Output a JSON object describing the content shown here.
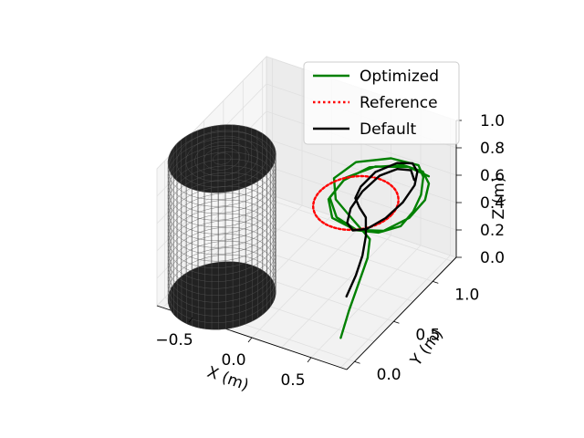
{
  "chart_data": {
    "type": "line",
    "projection": "3d",
    "xlabel": "X (m)",
    "ylabel": "Y (m)",
    "zlabel": "Z (m)",
    "xlim": [
      -0.8,
      0.8
    ],
    "ylim": [
      -0.1,
      1.3
    ],
    "zlim": [
      0.0,
      1.0
    ],
    "grid": true,
    "legend_position": "upper-right",
    "xticks": [
      {
        "value": -0.5,
        "label": "−0.5"
      },
      {
        "value": 0.0,
        "label": "0.0"
      },
      {
        "value": 0.5,
        "label": "0.5"
      }
    ],
    "yticks": [
      {
        "value": 0.0,
        "label": "0.0"
      },
      {
        "value": 0.5,
        "label": "0.5"
      },
      {
        "value": 1.0,
        "label": "1.0"
      }
    ],
    "zticks": [
      {
        "value": 0.0,
        "label": "0.0"
      },
      {
        "value": 0.2,
        "label": "0.2"
      },
      {
        "value": 0.4,
        "label": "0.4"
      },
      {
        "value": 0.6,
        "label": "0.6"
      },
      {
        "value": 0.8,
        "label": "0.8"
      },
      {
        "value": 1.0,
        "label": "1.0"
      }
    ],
    "obstacle": {
      "shape": "cylinder",
      "center": [
        -0.45,
        0.2
      ],
      "radius": 0.38,
      "z_range": [
        0.0,
        1.0
      ],
      "color": "#000000"
    },
    "series": [
      {
        "name": "Optimized",
        "color": "#008000",
        "style": "solid",
        "x": [
          0.65,
          0.62,
          0.6,
          0.58,
          0.52,
          0.3,
          0.1,
          0.0,
          0.1,
          0.35,
          0.6,
          0.72,
          0.8,
          0.82,
          0.78,
          0.62,
          0.4,
          0.15,
          0.02,
          0.05,
          0.2,
          0.45,
          0.65,
          0.78,
          0.84,
          0.8,
          0.65,
          0.42,
          0.2,
          0.05,
          0.08,
          0.25,
          0.5,
          0.7
        ],
        "y": [
          0.05,
          0.2,
          0.35,
          0.5,
          0.62,
          0.72,
          0.82,
          0.95,
          1.08,
          1.15,
          1.12,
          1.0,
          0.85,
          0.72,
          0.62,
          0.58,
          0.62,
          0.7,
          0.85,
          1.0,
          1.1,
          1.15,
          1.1,
          0.98,
          0.84,
          0.7,
          0.6,
          0.6,
          0.68,
          0.82,
          0.98,
          1.1,
          1.15,
          1.1
        ],
        "z": [
          0.1,
          0.2,
          0.3,
          0.4,
          0.45,
          0.48,
          0.5,
          0.55,
          0.62,
          0.68,
          0.72,
          0.74,
          0.72,
          0.68,
          0.62,
          0.55,
          0.48,
          0.45,
          0.46,
          0.52,
          0.6,
          0.66,
          0.7,
          0.72,
          0.7,
          0.64,
          0.56,
          0.5,
          0.48,
          0.5,
          0.56,
          0.62,
          0.66,
          0.68
        ]
      },
      {
        "name": "Reference",
        "color": "#ff0000",
        "style": "dotted",
        "shape": "circle",
        "center": [
          0.25,
          0.85
        ],
        "radius": 0.3,
        "z": 0.5
      },
      {
        "name": "Default",
        "color": "#000000",
        "style": "solid",
        "x": [
          0.6,
          0.58,
          0.55,
          0.5,
          0.42,
          0.3,
          0.2,
          0.18,
          0.25,
          0.4,
          0.55,
          0.65,
          0.7,
          0.68,
          0.6,
          0.48,
          0.35,
          0.25,
          0.2,
          0.22,
          0.3,
          0.42,
          0.55,
          0.63
        ],
        "y": [
          0.2,
          0.35,
          0.48,
          0.6,
          0.72,
          0.82,
          0.92,
          1.02,
          1.1,
          1.15,
          1.12,
          1.03,
          0.92,
          0.8,
          0.7,
          0.64,
          0.66,
          0.74,
          0.86,
          0.98,
          1.08,
          1.12,
          1.1,
          1.02
        ],
        "z": [
          0.3,
          0.36,
          0.42,
          0.48,
          0.52,
          0.5,
          0.48,
          0.5,
          0.58,
          0.66,
          0.72,
          0.74,
          0.72,
          0.66,
          0.58,
          0.5,
          0.44,
          0.42,
          0.44,
          0.5,
          0.58,
          0.64,
          0.68,
          0.68
        ]
      }
    ]
  }
}
